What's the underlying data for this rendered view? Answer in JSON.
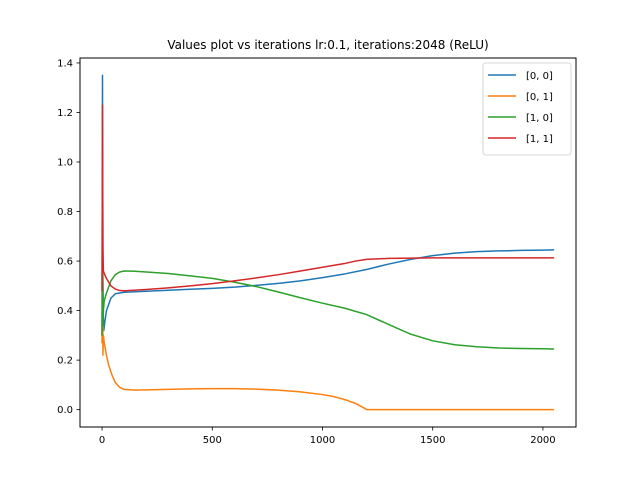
{
  "chart_data": {
    "type": "line",
    "title": "Values plot vs iterations lr:0.1, iterations:2048 (ReLU)",
    "xlabel": "",
    "ylabel": "",
    "xlim": [
      -100,
      2150
    ],
    "ylim": [
      -0.07,
      1.42
    ],
    "x_ticks": [
      0,
      500,
      1000,
      1500,
      2000
    ],
    "y_ticks": [
      0.0,
      0.2,
      0.4,
      0.6,
      0.8,
      1.0,
      1.2,
      1.4
    ],
    "x_tick_labels": [
      "0",
      "500",
      "1000",
      "1500",
      "2000"
    ],
    "y_tick_labels": [
      "0.0",
      "0.2",
      "0.4",
      "0.6",
      "0.8",
      "1.0",
      "1.2",
      "1.4"
    ],
    "grid": false,
    "legend_position": "top-right",
    "series": [
      {
        "name": "[0, 0]",
        "color": "#1f77b4",
        "points": [
          [
            0,
            0.3
          ],
          [
            2,
            1.35
          ],
          [
            4,
            0.55
          ],
          [
            6,
            0.37
          ],
          [
            8,
            0.32
          ],
          [
            12,
            0.35
          ],
          [
            20,
            0.4
          ],
          [
            40,
            0.45
          ],
          [
            60,
            0.468
          ],
          [
            100,
            0.474
          ],
          [
            200,
            0.478
          ],
          [
            300,
            0.482
          ],
          [
            400,
            0.486
          ],
          [
            500,
            0.49
          ],
          [
            600,
            0.495
          ],
          [
            700,
            0.502
          ],
          [
            800,
            0.51
          ],
          [
            900,
            0.52
          ],
          [
            1000,
            0.533
          ],
          [
            1100,
            0.548
          ],
          [
            1200,
            0.566
          ],
          [
            1300,
            0.588
          ],
          [
            1400,
            0.607
          ],
          [
            1500,
            0.622
          ],
          [
            1600,
            0.632
          ],
          [
            1700,
            0.638
          ],
          [
            1800,
            0.641
          ],
          [
            1900,
            0.643
          ],
          [
            2000,
            0.644
          ],
          [
            2048,
            0.645
          ]
        ]
      },
      {
        "name": "[0, 1]",
        "color": "#ff7f0e",
        "points": [
          [
            0,
            0.27
          ],
          [
            2,
            0.9
          ],
          [
            4,
            0.22
          ],
          [
            6,
            0.3
          ],
          [
            10,
            0.27
          ],
          [
            20,
            0.22
          ],
          [
            30,
            0.18
          ],
          [
            45,
            0.14
          ],
          [
            60,
            0.11
          ],
          [
            80,
            0.09
          ],
          [
            100,
            0.082
          ],
          [
            150,
            0.079
          ],
          [
            200,
            0.08
          ],
          [
            300,
            0.082
          ],
          [
            400,
            0.084
          ],
          [
            500,
            0.085
          ],
          [
            600,
            0.085
          ],
          [
            700,
            0.083
          ],
          [
            800,
            0.079
          ],
          [
            900,
            0.072
          ],
          [
            1000,
            0.061
          ],
          [
            1050,
            0.053
          ],
          [
            1100,
            0.041
          ],
          [
            1150,
            0.025
          ],
          [
            1190,
            0.006
          ],
          [
            1200,
            0.0
          ],
          [
            1400,
            0.0
          ],
          [
            1600,
            0.0
          ],
          [
            1800,
            0.0
          ],
          [
            2048,
            0.0
          ]
        ]
      },
      {
        "name": "[1, 0]",
        "color": "#2ca02c",
        "points": [
          [
            0,
            0.3
          ],
          [
            2,
            0.55
          ],
          [
            4,
            0.34
          ],
          [
            6,
            0.4
          ],
          [
            10,
            0.44
          ],
          [
            20,
            0.47
          ],
          [
            40,
            0.52
          ],
          [
            60,
            0.545
          ],
          [
            80,
            0.556
          ],
          [
            100,
            0.56
          ],
          [
            150,
            0.559
          ],
          [
            200,
            0.556
          ],
          [
            300,
            0.55
          ],
          [
            400,
            0.54
          ],
          [
            500,
            0.53
          ],
          [
            600,
            0.515
          ],
          [
            700,
            0.497
          ],
          [
            800,
            0.475
          ],
          [
            900,
            0.452
          ],
          [
            1000,
            0.43
          ],
          [
            1100,
            0.41
          ],
          [
            1150,
            0.397
          ],
          [
            1200,
            0.384
          ],
          [
            1300,
            0.344
          ],
          [
            1400,
            0.305
          ],
          [
            1500,
            0.278
          ],
          [
            1600,
            0.262
          ],
          [
            1700,
            0.254
          ],
          [
            1800,
            0.249
          ],
          [
            1900,
            0.247
          ],
          [
            2000,
            0.246
          ],
          [
            2048,
            0.245
          ]
        ]
      },
      {
        "name": "[1, 1]",
        "color": "#d62728",
        "points": [
          [
            0,
            0.48
          ],
          [
            2,
            1.23
          ],
          [
            4,
            0.65
          ],
          [
            6,
            0.56
          ],
          [
            10,
            0.55
          ],
          [
            20,
            0.53
          ],
          [
            40,
            0.5
          ],
          [
            60,
            0.487
          ],
          [
            80,
            0.481
          ],
          [
            100,
            0.48
          ],
          [
            200,
            0.485
          ],
          [
            300,
            0.492
          ],
          [
            400,
            0.5
          ],
          [
            500,
            0.509
          ],
          [
            600,
            0.52
          ],
          [
            700,
            0.532
          ],
          [
            800,
            0.545
          ],
          [
            900,
            0.56
          ],
          [
            1000,
            0.575
          ],
          [
            1100,
            0.59
          ],
          [
            1150,
            0.6
          ],
          [
            1200,
            0.607
          ],
          [
            1300,
            0.611
          ],
          [
            1400,
            0.612
          ],
          [
            1500,
            0.613
          ],
          [
            1600,
            0.613
          ],
          [
            1800,
            0.613
          ],
          [
            2048,
            0.613
          ]
        ]
      }
    ]
  }
}
